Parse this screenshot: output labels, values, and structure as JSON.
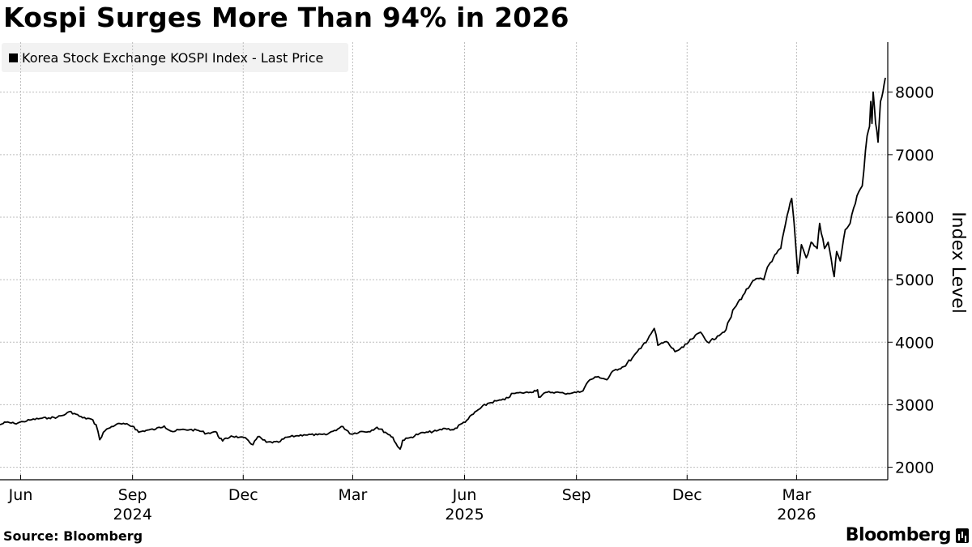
{
  "header": {
    "title": "Kospi Surges More Than 94% in 2026"
  },
  "legend": {
    "label": "Korea Stock Exchange KOSPI Index - Last Price"
  },
  "footer": {
    "source": "Source: Bloomberg",
    "brand": "Bloomberg"
  },
  "colors": {
    "line": "#000000",
    "grid": "#bdbdbd",
    "legend_bg": "#f2f2f2"
  },
  "chart_data": {
    "type": "line",
    "title": "Kospi Surges More Than 94% in 2026",
    "ylabel": "Index Level",
    "ylim": [
      1800,
      8800
    ],
    "yticks": [
      2000,
      3000,
      4000,
      5000,
      6000,
      7000,
      8000
    ],
    "xlim": [
      "2024-05-15",
      "2026-05-15"
    ],
    "xticks": [
      {
        "date": "2024-06-01",
        "label": "Jun",
        "year": ""
      },
      {
        "date": "2024-09-01",
        "label": "Sep",
        "year": "2024"
      },
      {
        "date": "2024-12-01",
        "label": "Dec",
        "year": ""
      },
      {
        "date": "2025-03-01",
        "label": "Mar",
        "year": ""
      },
      {
        "date": "2025-06-01",
        "label": "Jun",
        "year": "2025"
      },
      {
        "date": "2025-09-01",
        "label": "Sep",
        "year": ""
      },
      {
        "date": "2025-12-01",
        "label": "Dec",
        "year": ""
      },
      {
        "date": "2026-03-01",
        "label": "Mar",
        "year": "2026"
      }
    ],
    "grid": true,
    "legend_position": "top-left",
    "series": [
      {
        "name": "Korea Stock Exchange KOSPI Index - Last Price",
        "points": [
          [
            "2024-05-15",
            2680
          ],
          [
            "2024-05-20",
            2720
          ],
          [
            "2024-05-27",
            2700
          ],
          [
            "2024-06-03",
            2730
          ],
          [
            "2024-06-10",
            2760
          ],
          [
            "2024-06-17",
            2780
          ],
          [
            "2024-06-24",
            2790
          ],
          [
            "2024-07-01",
            2800
          ],
          [
            "2024-07-08",
            2850
          ],
          [
            "2024-07-11",
            2890
          ],
          [
            "2024-07-15",
            2860
          ],
          [
            "2024-07-22",
            2790
          ],
          [
            "2024-07-29",
            2770
          ],
          [
            "2024-08-02",
            2680
          ],
          [
            "2024-08-05",
            2440
          ],
          [
            "2024-08-08",
            2560
          ],
          [
            "2024-08-12",
            2620
          ],
          [
            "2024-08-19",
            2690
          ],
          [
            "2024-08-26",
            2690
          ],
          [
            "2024-09-02",
            2650
          ],
          [
            "2024-09-06",
            2560
          ],
          [
            "2024-09-12",
            2590
          ],
          [
            "2024-09-20",
            2610
          ],
          [
            "2024-09-27",
            2660
          ],
          [
            "2024-10-04",
            2570
          ],
          [
            "2024-10-10",
            2600
          ],
          [
            "2024-10-18",
            2600
          ],
          [
            "2024-10-25",
            2590
          ],
          [
            "2024-11-01",
            2540
          ],
          [
            "2024-11-08",
            2570
          ],
          [
            "2024-11-14",
            2420
          ],
          [
            "2024-11-21",
            2500
          ],
          [
            "2024-11-28",
            2480
          ],
          [
            "2024-12-04",
            2450
          ],
          [
            "2024-12-09",
            2360
          ],
          [
            "2024-12-13",
            2490
          ],
          [
            "2024-12-20",
            2400
          ],
          [
            "2024-12-30",
            2400
          ],
          [
            "2025-01-06",
            2480
          ],
          [
            "2025-01-13",
            2500
          ],
          [
            "2025-01-20",
            2520
          ],
          [
            "2025-01-31",
            2520
          ],
          [
            "2025-02-07",
            2520
          ],
          [
            "2025-02-14",
            2590
          ],
          [
            "2025-02-21",
            2650
          ],
          [
            "2025-02-28",
            2530
          ],
          [
            "2025-03-07",
            2570
          ],
          [
            "2025-03-14",
            2570
          ],
          [
            "2025-03-21",
            2640
          ],
          [
            "2025-03-28",
            2560
          ],
          [
            "2025-04-03",
            2480
          ],
          [
            "2025-04-07",
            2330
          ],
          [
            "2025-04-09",
            2290
          ],
          [
            "2025-04-11",
            2430
          ],
          [
            "2025-04-18",
            2480
          ],
          [
            "2025-04-25",
            2540
          ],
          [
            "2025-05-02",
            2560
          ],
          [
            "2025-05-09",
            2580
          ],
          [
            "2025-05-16",
            2620
          ],
          [
            "2025-05-23",
            2600
          ],
          [
            "2025-05-30",
            2700
          ],
          [
            "2025-06-04",
            2770
          ],
          [
            "2025-06-11",
            2900
          ],
          [
            "2025-06-20",
            3020
          ],
          [
            "2025-06-27",
            3060
          ],
          [
            "2025-07-04",
            3080
          ],
          [
            "2025-07-11",
            3180
          ],
          [
            "2025-07-18",
            3190
          ],
          [
            "2025-07-25",
            3200
          ],
          [
            "2025-07-31",
            3240
          ],
          [
            "2025-08-01",
            3120
          ],
          [
            "2025-08-08",
            3200
          ],
          [
            "2025-08-15",
            3200
          ],
          [
            "2025-08-22",
            3180
          ],
          [
            "2025-08-29",
            3190
          ],
          [
            "2025-09-05",
            3210
          ],
          [
            "2025-09-12",
            3400
          ],
          [
            "2025-09-19",
            3450
          ],
          [
            "2025-09-26",
            3400
          ],
          [
            "2025-10-02",
            3550
          ],
          [
            "2025-10-10",
            3610
          ],
          [
            "2025-10-17",
            3750
          ],
          [
            "2025-10-24",
            3900
          ],
          [
            "2025-10-31",
            4100
          ],
          [
            "2025-11-04",
            4220
          ],
          [
            "2025-11-07",
            3950
          ],
          [
            "2025-11-14",
            4010
          ],
          [
            "2025-11-21",
            3850
          ],
          [
            "2025-11-28",
            3920
          ],
          [
            "2025-12-05",
            4050
          ],
          [
            "2025-12-12",
            4160
          ],
          [
            "2025-12-19",
            3990
          ],
          [
            "2025-12-26",
            4100
          ],
          [
            "2026-01-02",
            4200
          ],
          [
            "2026-01-09",
            4550
          ],
          [
            "2026-01-16",
            4750
          ],
          [
            "2026-01-23",
            4950
          ],
          [
            "2026-01-28",
            5020
          ],
          [
            "2026-02-02",
            5000
          ],
          [
            "2026-02-05",
            5200
          ],
          [
            "2026-02-10",
            5350
          ],
          [
            "2026-02-16",
            5500
          ],
          [
            "2026-02-20",
            5900
          ],
          [
            "2026-02-25",
            6300
          ],
          [
            "2026-02-27",
            5900
          ],
          [
            "2026-03-02",
            5100
          ],
          [
            "2026-03-05",
            5560
          ],
          [
            "2026-03-09",
            5350
          ],
          [
            "2026-03-13",
            5600
          ],
          [
            "2026-03-18",
            5500
          ],
          [
            "2026-03-20",
            5900
          ],
          [
            "2026-03-24",
            5500
          ],
          [
            "2026-03-27",
            5600
          ],
          [
            "2026-04-01",
            5050
          ],
          [
            "2026-04-03",
            5450
          ],
          [
            "2026-04-06",
            5300
          ],
          [
            "2026-04-10",
            5800
          ],
          [
            "2026-04-14",
            5900
          ],
          [
            "2026-04-17",
            6150
          ],
          [
            "2026-04-21",
            6400
          ],
          [
            "2026-04-24",
            6500
          ],
          [
            "2026-04-28",
            7300
          ],
          [
            "2026-04-30",
            7450
          ],
          [
            "2026-05-01",
            7850
          ],
          [
            "2026-05-02",
            7500
          ],
          [
            "2026-05-03",
            8000
          ],
          [
            "2026-05-05",
            7500
          ],
          [
            "2026-05-07",
            7200
          ],
          [
            "2026-05-09",
            7850
          ],
          [
            "2026-05-11",
            8000
          ],
          [
            "2026-05-13",
            8230
          ]
        ]
      }
    ]
  }
}
